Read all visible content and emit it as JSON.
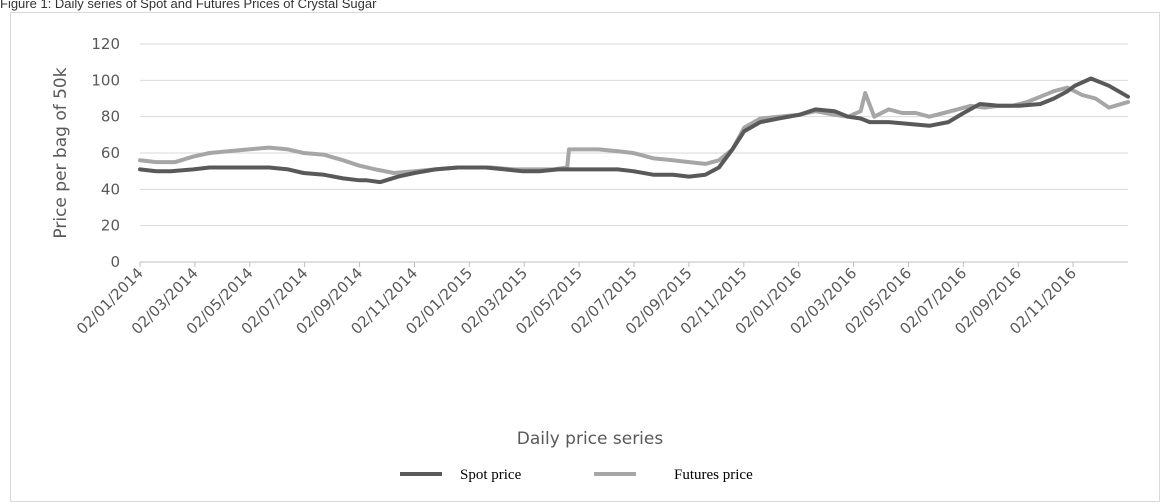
{
  "caption": "Figure 1: Daily series of Spot and Futures Prices of Crystal Sugar",
  "colors": {
    "spot": "#595959",
    "futures": "#a6a6a6",
    "grid": "#d9d9d9",
    "axis": "#bfbfbf"
  },
  "chart_data": {
    "type": "line",
    "title": "",
    "xlabel": "Daily price series",
    "ylabel": "Price per bag of 50k",
    "ylim": [
      0,
      120
    ],
    "yticks": [
      0,
      20,
      40,
      60,
      80,
      100,
      120
    ],
    "xlim": [
      "2014-01-02",
      "2016-12-31"
    ],
    "xtick_labels": [
      "02/01/2014",
      "02/03/2014",
      "02/05/2014",
      "02/07/2014",
      "02/09/2014",
      "02/11/2014",
      "02/01/2015",
      "02/03/2015",
      "02/05/2015",
      "02/07/2015",
      "02/09/2015",
      "02/11/2015",
      "02/01/2016",
      "02/03/2016",
      "02/05/2016",
      "02/07/2016",
      "02/09/2016",
      "02/11/2016"
    ],
    "grid": true,
    "legend": "bottom",
    "series": [
      {
        "name": "Spot price",
        "x": [
          "2014-01-02",
          "2014-01-20",
          "2014-02-05",
          "2014-03-02",
          "2014-03-20",
          "2014-04-10",
          "2014-05-02",
          "2014-05-25",
          "2014-06-15",
          "2014-07-02",
          "2014-07-25",
          "2014-08-15",
          "2014-09-02",
          "2014-09-10",
          "2014-09-25",
          "2014-10-15",
          "2014-11-02",
          "2014-11-25",
          "2014-12-20",
          "2015-01-02",
          "2015-01-20",
          "2015-02-10",
          "2015-03-02",
          "2015-03-20",
          "2015-04-10",
          "2015-05-02",
          "2015-05-25",
          "2015-06-15",
          "2015-07-02",
          "2015-07-25",
          "2015-08-15",
          "2015-09-02",
          "2015-09-20",
          "2015-10-05",
          "2015-10-20",
          "2015-11-02",
          "2015-11-20",
          "2015-12-10",
          "2016-01-02",
          "2016-01-20",
          "2016-02-10",
          "2016-02-25",
          "2016-03-10",
          "2016-03-20",
          "2016-04-10",
          "2016-05-02",
          "2016-05-25",
          "2016-06-15",
          "2016-07-02",
          "2016-07-20",
          "2016-08-10",
          "2016-09-02",
          "2016-09-25",
          "2016-10-10",
          "2016-10-25",
          "2016-11-02",
          "2016-11-20",
          "2016-12-10",
          "2016-12-31"
        ],
        "values": [
          51,
          50,
          50,
          51,
          52,
          52,
          52,
          52,
          51,
          49,
          48,
          46,
          45,
          45,
          44,
          47,
          49,
          51,
          52,
          52,
          52,
          51,
          50,
          50,
          51,
          51,
          51,
          51,
          50,
          48,
          48,
          47,
          48,
          52,
          62,
          72,
          77,
          79,
          81,
          84,
          83,
          80,
          79,
          77,
          77,
          76,
          75,
          77,
          82,
          87,
          86,
          86,
          87,
          90,
          94,
          97,
          101,
          97,
          91
        ]
      },
      {
        "name": "Futures price",
        "x": [
          "2014-01-02",
          "2014-01-20",
          "2014-02-10",
          "2014-03-02",
          "2014-03-20",
          "2014-04-10",
          "2014-05-02",
          "2014-05-25",
          "2014-06-15",
          "2014-07-02",
          "2014-07-25",
          "2014-08-15",
          "2014-09-02",
          "2014-09-20",
          "2014-10-10",
          "2014-11-02",
          "2014-11-25",
          "2014-12-20",
          "2015-01-02",
          "2015-01-25",
          "2015-02-20",
          "2015-03-15",
          "2015-04-05",
          "2015-04-20",
          "2015-04-22",
          "2015-05-02",
          "2015-05-25",
          "2015-06-15",
          "2015-07-02",
          "2015-07-25",
          "2015-08-15",
          "2015-09-02",
          "2015-09-20",
          "2015-10-05",
          "2015-10-20",
          "2015-11-02",
          "2015-11-20",
          "2015-12-10",
          "2016-01-02",
          "2016-01-20",
          "2016-02-10",
          "2016-02-25",
          "2016-03-10",
          "2016-03-15",
          "2016-03-25",
          "2016-04-10",
          "2016-04-25",
          "2016-05-10",
          "2016-05-25",
          "2016-06-10",
          "2016-06-25",
          "2016-07-10",
          "2016-07-25",
          "2016-08-10",
          "2016-08-25",
          "2016-09-10",
          "2016-09-25",
          "2016-10-10",
          "2016-10-25",
          "2016-11-10",
          "2016-11-25",
          "2016-12-10",
          "2016-12-31"
        ],
        "values": [
          56,
          55,
          55,
          58,
          60,
          61,
          62,
          63,
          62,
          60,
          59,
          56,
          53,
          51,
          49,
          50,
          51,
          52,
          52,
          52,
          51,
          51,
          51,
          52,
          62,
          62,
          62,
          61,
          60,
          57,
          56,
          55,
          54,
          56,
          62,
          74,
          79,
          80,
          81,
          83,
          81,
          80,
          83,
          93,
          80,
          84,
          82,
          82,
          80,
          82,
          84,
          86,
          85,
          86,
          86,
          88,
          91,
          94,
          96,
          92,
          90,
          85,
          88
        ]
      }
    ]
  }
}
